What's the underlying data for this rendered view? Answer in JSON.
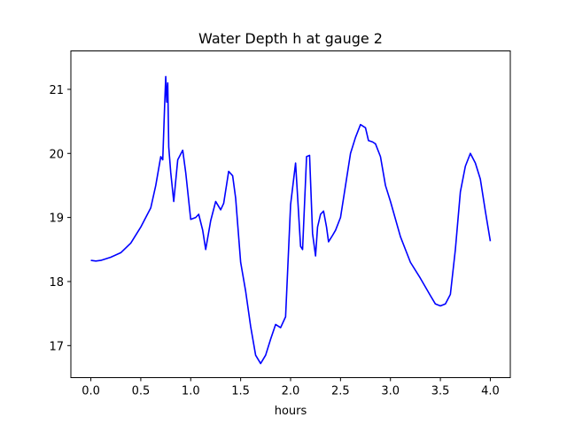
{
  "chart_data": {
    "type": "line",
    "title": "Water Depth h at gauge 2",
    "xlabel": "hours",
    "ylabel": "",
    "xlim": [
      -0.2,
      4.2
    ],
    "ylim": [
      16.5,
      21.6
    ],
    "grid": false,
    "xticks": [
      0.0,
      0.5,
      1.0,
      1.5,
      2.0,
      2.5,
      3.0,
      3.5,
      4.0
    ],
    "xtick_labels": [
      "0.0",
      "0.5",
      "1.0",
      "1.5",
      "2.0",
      "2.5",
      "3.0",
      "3.5",
      "4.0"
    ],
    "yticks": [
      17,
      18,
      19,
      20,
      21
    ],
    "ytick_labels": [
      "17",
      "18",
      "19",
      "20",
      "21"
    ],
    "series": [
      {
        "color": "#0000ff",
        "x": [
          0.0,
          0.05,
          0.1,
          0.2,
          0.3,
          0.4,
          0.5,
          0.6,
          0.65,
          0.7,
          0.72,
          0.74,
          0.75,
          0.76,
          0.77,
          0.78,
          0.8,
          0.83,
          0.87,
          0.92,
          0.95,
          1.0,
          1.05,
          1.08,
          1.12,
          1.15,
          1.2,
          1.25,
          1.3,
          1.33,
          1.38,
          1.42,
          1.45,
          1.5,
          1.55,
          1.6,
          1.65,
          1.7,
          1.75,
          1.8,
          1.85,
          1.9,
          1.95,
          2.0,
          2.05,
          2.1,
          2.12,
          2.16,
          2.19,
          2.22,
          2.25,
          2.27,
          2.3,
          2.33,
          2.36,
          2.38,
          2.42,
          2.45,
          2.5,
          2.55,
          2.6,
          2.65,
          2.7,
          2.75,
          2.78,
          2.82,
          2.85,
          2.9,
          2.95,
          3.0,
          3.1,
          3.2,
          3.3,
          3.4,
          3.45,
          3.5,
          3.55,
          3.6,
          3.65,
          3.7,
          3.75,
          3.8,
          3.85,
          3.9,
          3.95,
          4.0
        ],
        "y": [
          18.33,
          18.32,
          18.33,
          18.38,
          18.45,
          18.6,
          18.85,
          19.15,
          19.5,
          19.95,
          19.9,
          20.8,
          21.2,
          20.8,
          21.1,
          20.1,
          19.7,
          19.25,
          19.9,
          20.05,
          19.7,
          18.97,
          19.0,
          19.05,
          18.8,
          18.5,
          18.95,
          19.25,
          19.12,
          19.22,
          19.72,
          19.65,
          19.3,
          18.3,
          17.85,
          17.3,
          16.85,
          16.72,
          16.85,
          17.1,
          17.33,
          17.28,
          17.45,
          19.2,
          19.85,
          18.55,
          18.5,
          19.95,
          19.97,
          18.75,
          18.4,
          18.85,
          19.05,
          19.1,
          18.85,
          18.62,
          18.72,
          18.8,
          19.0,
          19.5,
          20.0,
          20.25,
          20.45,
          20.4,
          20.2,
          20.18,
          20.15,
          19.95,
          19.5,
          19.25,
          18.7,
          18.3,
          18.05,
          17.78,
          17.65,
          17.62,
          17.65,
          17.8,
          18.5,
          19.4,
          19.8,
          20.0,
          19.85,
          19.6,
          19.1,
          18.63
        ]
      }
    ]
  }
}
